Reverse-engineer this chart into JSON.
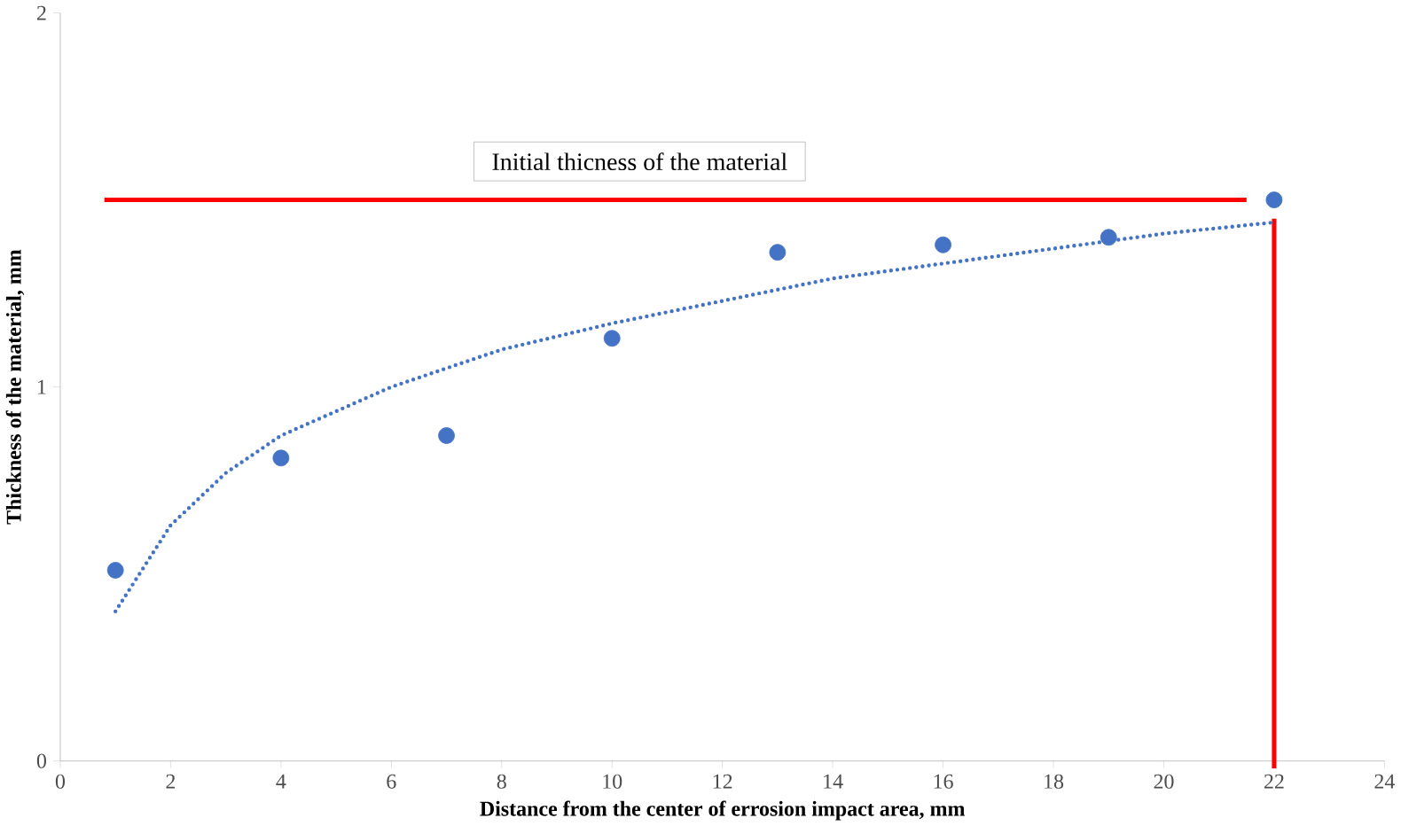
{
  "chart_data": {
    "type": "scatter",
    "xlabel": "Distance from the center of errosion impact area, mm",
    "ylabel": "Thickness of the material, mm",
    "xlim": [
      0,
      24
    ],
    "xticks": [
      0,
      2,
      4,
      6,
      8,
      10,
      12,
      14,
      16,
      18,
      20,
      22,
      24
    ],
    "ylim": [
      0,
      2
    ],
    "yticks": [
      0,
      1,
      2
    ],
    "grid": false,
    "series": [
      {
        "marker": "circle",
        "color": "#4472c4",
        "x": [
          1,
          4,
          7,
          10,
          13,
          16,
          19,
          22
        ],
        "values": [
          0.51,
          0.81,
          0.87,
          1.13,
          1.36,
          1.38,
          1.4,
          1.5
        ]
      },
      {
        "type": "line",
        "color": "#4472c4",
        "line_style": "dotted",
        "marker": "none",
        "x": [
          1,
          2,
          3,
          4,
          6,
          8,
          10,
          12,
          14,
          16,
          18,
          20,
          22
        ],
        "values": [
          0.4,
          0.63,
          0.77,
          0.87,
          1.0,
          1.1,
          1.17,
          1.23,
          1.29,
          1.33,
          1.37,
          1.41,
          1.44
        ]
      }
    ],
    "ref_lines": [
      {
        "axis": "y",
        "value": 1.5,
        "label": "Initial thicness of the material",
        "color": "#ff0000"
      },
      {
        "axis": "x",
        "value": 22,
        "color": "#ff0000"
      }
    ]
  }
}
